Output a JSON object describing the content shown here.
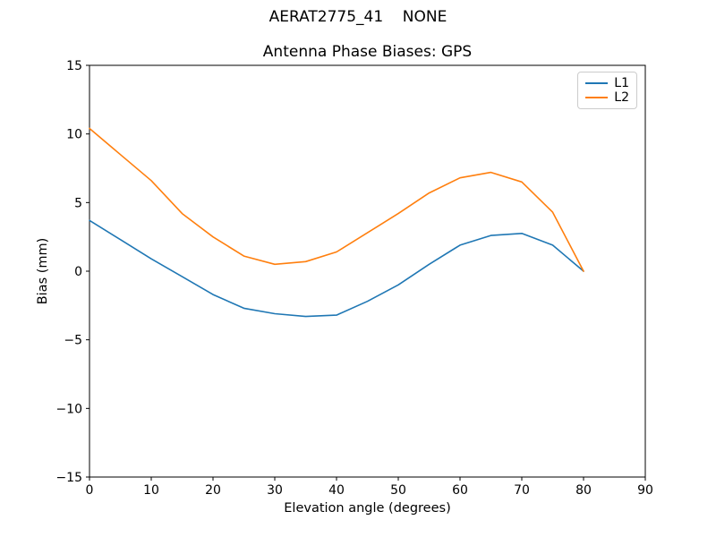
{
  "figure": {
    "suptitle": "AERAT2775_41    NONE",
    "title": "Antenna Phase Biases: GPS"
  },
  "chart_data": {
    "type": "line",
    "title": "Antenna Phase Biases: GPS",
    "suptitle": "AERAT2775_41    NONE",
    "xlabel": "Elevation angle (degrees)",
    "ylabel": "Bias (mm)",
    "xlim": [
      0,
      90
    ],
    "ylim": [
      -15,
      15
    ],
    "xticks": [
      0,
      10,
      20,
      30,
      40,
      50,
      60,
      70,
      80,
      90
    ],
    "yticks": [
      -15,
      -10,
      -5,
      0,
      5,
      10,
      15
    ],
    "grid": false,
    "legend_position": "upper right",
    "x": [
      0,
      5,
      10,
      15,
      20,
      25,
      30,
      35,
      40,
      45,
      50,
      55,
      60,
      65,
      70,
      75,
      80
    ],
    "series": [
      {
        "name": "L1",
        "color": "#1f77b4",
        "values": [
          3.7,
          2.3,
          0.9,
          -0.4,
          -1.7,
          -2.7,
          -3.1,
          -3.3,
          -3.2,
          -2.2,
          -1.0,
          0.5,
          1.9,
          2.6,
          2.75,
          1.9,
          0.0
        ]
      },
      {
        "name": "L2",
        "color": "#ff7f0e",
        "values": [
          10.4,
          8.5,
          6.6,
          4.2,
          2.5,
          1.1,
          0.5,
          0.7,
          1.4,
          2.8,
          4.2,
          5.7,
          6.8,
          7.2,
          6.5,
          4.3,
          0.0
        ]
      }
    ],
    "axes_colors": {
      "spine": "#000000",
      "background": "#ffffff"
    }
  }
}
